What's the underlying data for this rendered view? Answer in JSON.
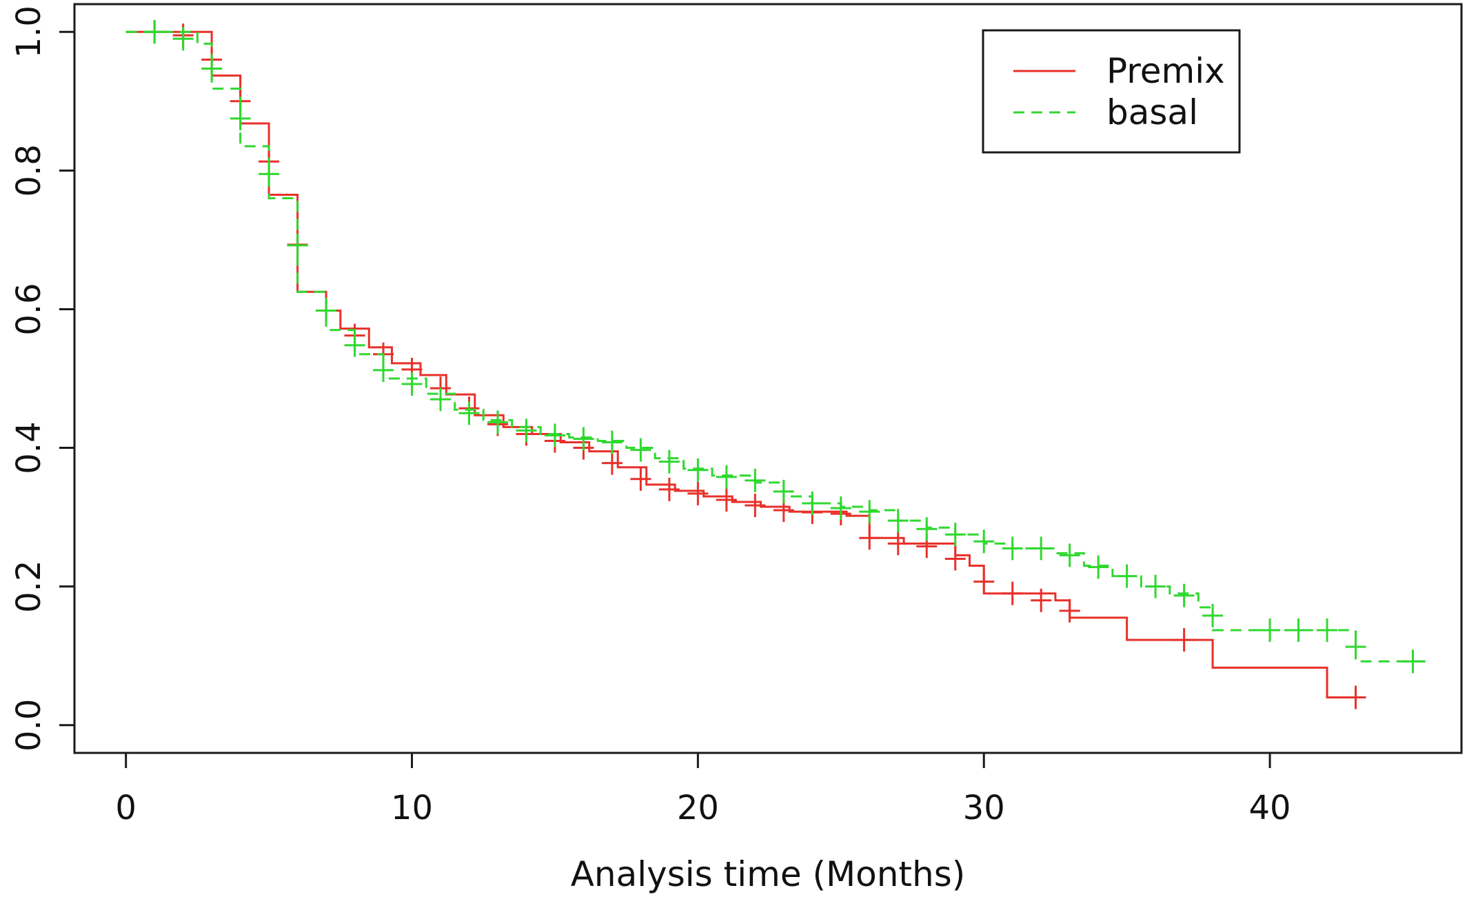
{
  "chart_data": {
    "type": "line",
    "subtype": "kaplan-meier step curves with censoring marks",
    "title": "",
    "xlabel": "Analysis time (Months)",
    "ylabel": "",
    "xlim": [
      -1.8,
      46.7
    ],
    "ylim": [
      -0.04,
      1.04
    ],
    "x_ticks": [
      0,
      10,
      20,
      30,
      40
    ],
    "y_ticks": [
      0.0,
      0.2,
      0.4,
      0.6,
      0.8,
      1.0
    ],
    "x_tick_labels": [
      "0",
      "10",
      "20",
      "30",
      "40"
    ],
    "y_tick_labels": [
      "0.0",
      "0.2",
      "0.4",
      "0.6",
      "0.8",
      "1.0"
    ],
    "grid": false,
    "legend_position": "top-right",
    "series": [
      {
        "name": "Premix",
        "color": "#e8302a",
        "dash": "solid",
        "steps": [
          [
            0,
            1.0
          ],
          [
            3,
            0.937
          ],
          [
            4,
            0.868
          ],
          [
            5,
            0.765
          ],
          [
            6,
            0.625
          ],
          [
            7,
            0.598
          ],
          [
            7.5,
            0.572
          ],
          [
            8.5,
            0.545
          ],
          [
            9.3,
            0.522
          ],
          [
            10.3,
            0.505
          ],
          [
            11.2,
            0.477
          ],
          [
            12.2,
            0.447
          ],
          [
            13.2,
            0.43
          ],
          [
            14.2,
            0.42
          ],
          [
            15.2,
            0.408
          ],
          [
            16.2,
            0.395
          ],
          [
            17.2,
            0.372
          ],
          [
            18.2,
            0.347
          ],
          [
            19.2,
            0.338
          ],
          [
            20.2,
            0.33
          ],
          [
            21.2,
            0.322
          ],
          [
            22.2,
            0.315
          ],
          [
            23.2,
            0.308
          ],
          [
            25.2,
            0.302
          ],
          [
            26.0,
            0.27
          ],
          [
            27.2,
            0.262
          ],
          [
            29.0,
            0.245
          ],
          [
            29.5,
            0.23
          ],
          [
            30,
            0.19
          ],
          [
            32.5,
            0.18
          ],
          [
            33,
            0.155
          ],
          [
            35,
            0.123
          ],
          [
            38,
            0.083
          ],
          [
            42,
            0.04
          ]
        ],
        "end_x": 43.2,
        "censored": [
          [
            1,
            1.0
          ],
          [
            2,
            0.995
          ],
          [
            3,
            0.96
          ],
          [
            4,
            0.9
          ],
          [
            5,
            0.813
          ],
          [
            6,
            0.693
          ],
          [
            7,
            0.598
          ],
          [
            8,
            0.562
          ],
          [
            9,
            0.535
          ],
          [
            10,
            0.513
          ],
          [
            11,
            0.486
          ],
          [
            12,
            0.457
          ],
          [
            13,
            0.434
          ],
          [
            14,
            0.42
          ],
          [
            15,
            0.41
          ],
          [
            16,
            0.4
          ],
          [
            17,
            0.378
          ],
          [
            18,
            0.355
          ],
          [
            19,
            0.34
          ],
          [
            20,
            0.334
          ],
          [
            21,
            0.325
          ],
          [
            22,
            0.317
          ],
          [
            23,
            0.31
          ],
          [
            24,
            0.307
          ],
          [
            25,
            0.305
          ],
          [
            26,
            0.27
          ],
          [
            27,
            0.262
          ],
          [
            28,
            0.258
          ],
          [
            29,
            0.24
          ],
          [
            30,
            0.207
          ],
          [
            31,
            0.19
          ],
          [
            32,
            0.18
          ],
          [
            33,
            0.165
          ],
          [
            37,
            0.123
          ],
          [
            43,
            0.04
          ]
        ]
      },
      {
        "name": "basal",
        "color": "#2fd82f",
        "dash": "dashed",
        "steps": [
          [
            0,
            1.0
          ],
          [
            2.5,
            0.983
          ],
          [
            3,
            0.918
          ],
          [
            4,
            0.835
          ],
          [
            5,
            0.76
          ],
          [
            6,
            0.625
          ],
          [
            7,
            0.57
          ],
          [
            8,
            0.535
          ],
          [
            9,
            0.5
          ],
          [
            10.5,
            0.478
          ],
          [
            11.5,
            0.455
          ],
          [
            12.5,
            0.44
          ],
          [
            13.5,
            0.43
          ],
          [
            14.5,
            0.42
          ],
          [
            15.5,
            0.415
          ],
          [
            16.5,
            0.41
          ],
          [
            17.5,
            0.4
          ],
          [
            18.5,
            0.385
          ],
          [
            19.5,
            0.37
          ],
          [
            20.5,
            0.36
          ],
          [
            22,
            0.35
          ],
          [
            23,
            0.33
          ],
          [
            24,
            0.32
          ],
          [
            25,
            0.315
          ],
          [
            26,
            0.31
          ],
          [
            27,
            0.295
          ],
          [
            28,
            0.285
          ],
          [
            29,
            0.275
          ],
          [
            30,
            0.262
          ],
          [
            31,
            0.255
          ],
          [
            32.5,
            0.248
          ],
          [
            33.5,
            0.23
          ],
          [
            34.5,
            0.215
          ],
          [
            35.5,
            0.2
          ],
          [
            36.5,
            0.19
          ],
          [
            37.5,
            0.17
          ],
          [
            38,
            0.137
          ],
          [
            43,
            0.092
          ]
        ],
        "end_x": 45.5,
        "censored": [
          [
            1,
            1.0
          ],
          [
            2,
            0.99
          ],
          [
            3,
            0.947
          ],
          [
            4,
            0.875
          ],
          [
            5,
            0.795
          ],
          [
            6,
            0.692
          ],
          [
            7,
            0.598
          ],
          [
            8,
            0.548
          ],
          [
            9,
            0.512
          ],
          [
            10,
            0.492
          ],
          [
            11,
            0.47
          ],
          [
            12,
            0.45
          ],
          [
            13,
            0.437
          ],
          [
            14,
            0.425
          ],
          [
            15,
            0.418
          ],
          [
            16,
            0.413
          ],
          [
            17,
            0.408
          ],
          [
            18,
            0.397
          ],
          [
            19,
            0.38
          ],
          [
            20,
            0.368
          ],
          [
            21,
            0.358
          ],
          [
            22,
            0.353
          ],
          [
            23,
            0.337
          ],
          [
            24,
            0.32
          ],
          [
            25,
            0.313
          ],
          [
            26,
            0.308
          ],
          [
            27,
            0.295
          ],
          [
            28,
            0.283
          ],
          [
            29,
            0.275
          ],
          [
            30,
            0.265
          ],
          [
            31,
            0.255
          ],
          [
            32,
            0.255
          ],
          [
            33,
            0.245
          ],
          [
            34,
            0.228
          ],
          [
            35,
            0.215
          ],
          [
            36,
            0.2
          ],
          [
            37,
            0.187
          ],
          [
            38,
            0.158
          ],
          [
            40,
            0.137
          ],
          [
            41,
            0.137
          ],
          [
            42,
            0.137
          ],
          [
            43,
            0.113
          ],
          [
            45,
            0.092
          ]
        ]
      }
    ]
  }
}
